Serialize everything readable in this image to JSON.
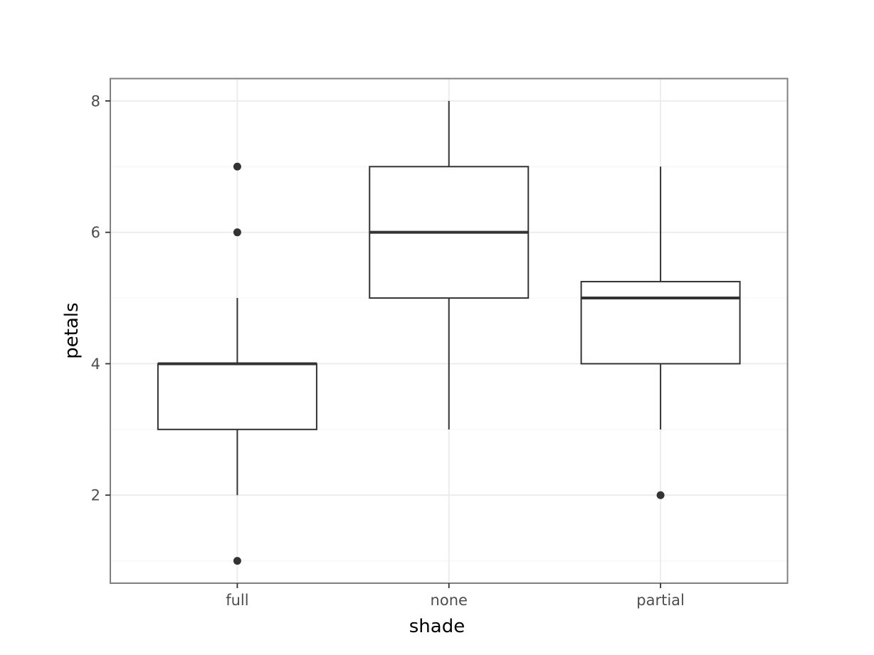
{
  "chart_data": {
    "type": "box",
    "xlabel": "shade",
    "ylabel": "petals",
    "categories": [
      "full",
      "none",
      "partial"
    ],
    "ylim": [
      0.66,
      8.34
    ],
    "yticks": [
      2,
      4,
      6,
      8
    ],
    "y_minor_ticks": [
      1,
      3,
      5,
      7
    ],
    "grid": true,
    "boxes": [
      {
        "category": "full",
        "q1": 3,
        "median": 4,
        "q3": 4,
        "whisker_low": 2,
        "whisker_high": 5,
        "outliers": [
          1,
          6,
          7
        ]
      },
      {
        "category": "none",
        "q1": 5,
        "median": 6,
        "q3": 7,
        "whisker_low": 3,
        "whisker_high": 8,
        "outliers": []
      },
      {
        "category": "partial",
        "q1": 4,
        "median": 5,
        "q3": 5.25,
        "whisker_low": 3,
        "whisker_high": 7,
        "outliers": [
          2
        ]
      }
    ],
    "colors": {
      "box_line": "#333333",
      "panel_border": "#7f7f7f",
      "grid_major": "#ebebeb",
      "grid_minor": "#f5f5f5",
      "background": "#ffffff"
    }
  }
}
